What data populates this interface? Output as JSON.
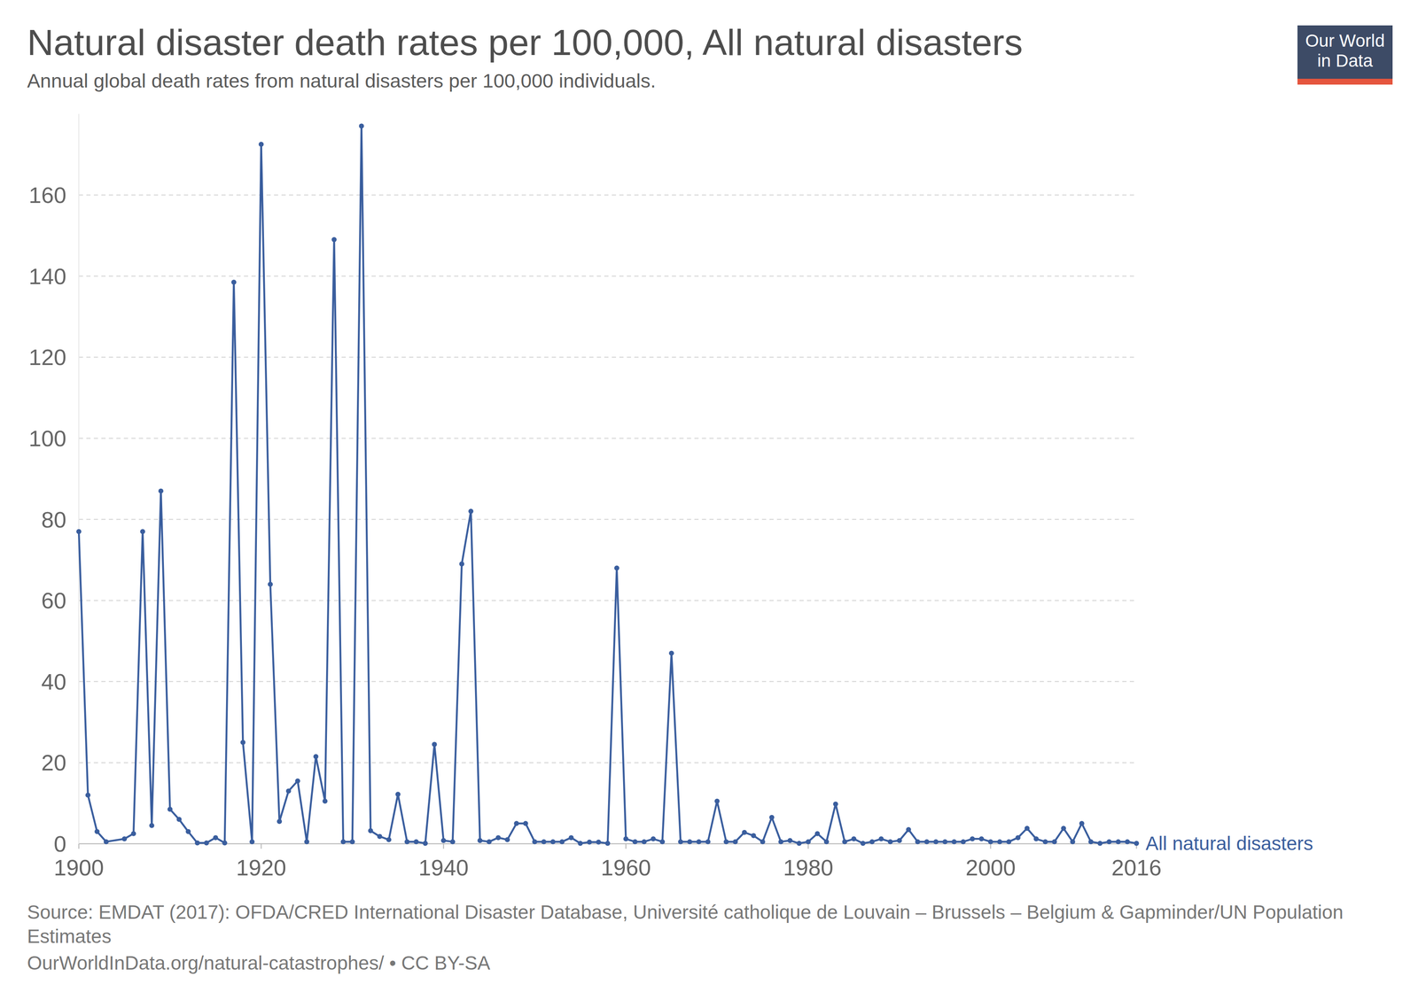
{
  "chart_data": {
    "type": "line",
    "title": "Natural disaster death rates per 100,000, All natural disasters",
    "subtitle": "Annual global death rates from natural disasters per 100,000 individuals.",
    "annotations": [
      "Our World",
      "in Data",
      "Source: EMDAT (2017): OFDA/CRED International Disaster Database, Université catholique de Louvain – Brussels – Belgium & Gapminder/UN Population Estimates",
      "OurWorldInData.org/natural-catastrophes/ • CC BY-SA"
    ],
    "x": [
      1900,
      1901,
      1902,
      1903,
      1905,
      1906,
      1907,
      1908,
      1909,
      1910,
      1911,
      1912,
      1913,
      1914,
      1915,
      1916,
      1917,
      1918,
      1919,
      1920,
      1921,
      1922,
      1923,
      1924,
      1925,
      1926,
      1927,
      1928,
      1929,
      1930,
      1931,
      1932,
      1933,
      1934,
      1935,
      1936,
      1937,
      1938,
      1939,
      1940,
      1941,
      1942,
      1943,
      1944,
      1945,
      1946,
      1947,
      1948,
      1949,
      1950,
      1951,
      1952,
      1953,
      1954,
      1955,
      1956,
      1957,
      1958,
      1959,
      1960,
      1961,
      1962,
      1963,
      1964,
      1965,
      1966,
      1967,
      1968,
      1969,
      1970,
      1971,
      1972,
      1973,
      1974,
      1975,
      1976,
      1977,
      1978,
      1979,
      1980,
      1981,
      1982,
      1983,
      1984,
      1985,
      1986,
      1987,
      1988,
      1989,
      1990,
      1991,
      1992,
      1993,
      1994,
      1995,
      1996,
      1997,
      1998,
      1999,
      2000,
      2001,
      2002,
      2003,
      2004,
      2005,
      2006,
      2007,
      2008,
      2009,
      2010,
      2011,
      2012,
      2013,
      2014,
      2015,
      2016
    ],
    "series": [
      {
        "name": "All natural disasters",
        "color": "#3a5e9e",
        "marker": "circle",
        "line_style": "solid",
        "values": [
          77,
          12,
          3,
          0.5,
          1.2,
          2.5,
          77,
          4.5,
          87,
          8.5,
          6,
          3,
          0.2,
          0.2,
          1.5,
          0.2,
          138.5,
          25,
          0.5,
          172.5,
          64,
          5.5,
          13,
          15.5,
          0.5,
          21.5,
          10.5,
          149,
          0.5,
          0.5,
          177,
          3.2,
          1.8,
          1,
          12.2,
          0.5,
          0.5,
          0.1,
          24.5,
          0.8,
          0.5,
          69,
          82,
          0.8,
          0.5,
          1.5,
          1,
          5,
          5,
          0.5,
          0.5,
          0.5,
          0.5,
          1.5,
          0.1,
          0.4,
          0.4,
          0.1,
          68,
          1.2,
          0.5,
          0.5,
          1.2,
          0.5,
          47,
          0.5,
          0.5,
          0.5,
          0.5,
          10.5,
          0.5,
          0.5,
          2.8,
          2,
          0.5,
          6.5,
          0.5,
          0.8,
          0.1,
          0.5,
          2.5,
          0.5,
          9.8,
          0.5,
          1.2,
          0.1,
          0.5,
          1.2,
          0.5,
          0.8,
          3.5,
          0.5,
          0.5,
          0.5,
          0.5,
          0.5,
          0.5,
          1.2,
          1.2,
          0.5,
          0.5,
          0.5,
          1.5,
          3.8,
          1.2,
          0.5,
          0.5,
          3.8,
          0.5,
          5,
          0.5,
          0.1,
          0.5,
          0.5,
          0.5,
          0.1
        ]
      }
    ],
    "xlim": [
      1900,
      2016
    ],
    "xticks": [
      1900,
      1920,
      1940,
      1960,
      1980,
      2000,
      2016
    ],
    "ylim": [
      0,
      180
    ],
    "yticks": [
      0,
      20,
      40,
      60,
      80,
      100,
      120,
      140,
      160
    ],
    "grid": true
  }
}
